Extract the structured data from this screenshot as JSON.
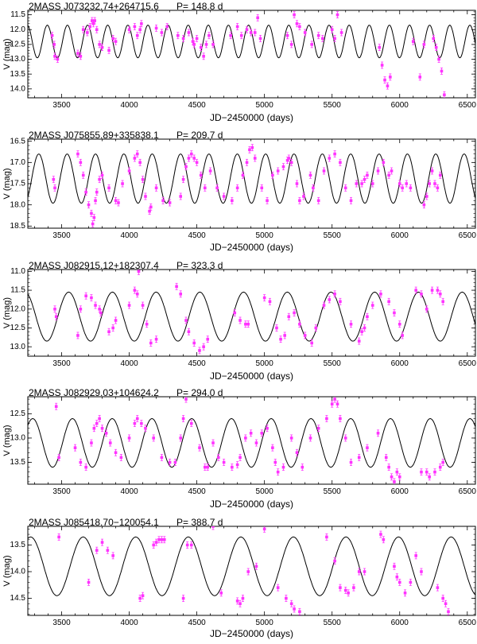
{
  "colors": {
    "data_points": "#ff33ff",
    "model_curve": "#000000",
    "axes": "#000000"
  },
  "chart_data": [
    {
      "type": "scatter",
      "title": "2MASS J073232.74+264715.6",
      "period_label": "P= 148.8 d",
      "period_days": 148.8,
      "xlabel": "JD−2450000 (days)",
      "ylabel": "V (mag)",
      "xlim": [
        3250,
        6560
      ],
      "ylim": [
        14.3,
        11.35
      ],
      "y_inverted": true,
      "xticks": [
        3500,
        4000,
        4500,
        5000,
        5500,
        6000,
        6500
      ],
      "yticks": [
        11.5,
        12.0,
        12.5,
        13.0,
        13.5,
        14.0
      ],
      "ytick_labels": [
        "11.5",
        "12.0",
        "12.5",
        "13.0",
        "13.5",
        "14.0"
      ],
      "model": {
        "mean": 12.4,
        "amplitude": 0.55,
        "period": 148.8,
        "phase_jd": 3320
      },
      "series": [
        {
          "x": [
            3430,
            3445,
            3450,
            3470,
            3620,
            3640,
            3660,
            3690,
            3710,
            3725,
            3735,
            3745,
            3760,
            3780,
            3800,
            3850,
            3880,
            3900,
            4000,
            4040,
            4060,
            4080,
            4090,
            4200,
            4240,
            4280,
            4360,
            4400,
            4440,
            4470,
            4480,
            4500,
            4530,
            4550,
            4570,
            4590,
            4620,
            4750,
            4800,
            4830,
            4870,
            4900,
            4930,
            4950,
            4970,
            5170,
            5200,
            5220,
            5240,
            5260,
            5300,
            5350,
            5400,
            5430,
            5500,
            5520,
            5540,
            5570,
            5850,
            5870,
            5890,
            5910,
            5930,
            6100,
            6150,
            6180,
            6250,
            6270,
            6290,
            6310,
            6330
          ],
          "y": [
            12.2,
            12.5,
            12.9,
            13.0,
            12.8,
            12.9,
            12.0,
            12.1,
            11.9,
            11.7,
            11.8,
            11.7,
            12.0,
            12.5,
            12.6,
            12.7,
            12.3,
            12.4,
            12.0,
            11.9,
            12.2,
            12.0,
            11.8,
            11.95,
            12.1,
            11.9,
            12.2,
            12.3,
            12.1,
            12.4,
            12.5,
            12.3,
            12.6,
            12.9,
            12.5,
            12.2,
            12.5,
            12.2,
            11.9,
            12.2,
            12.0,
            12.1,
            12.1,
            11.6,
            12.3,
            12.2,
            12.5,
            11.5,
            11.8,
            11.9,
            12.1,
            12.5,
            12.2,
            12.3,
            12.0,
            12.3,
            11.5,
            12.1,
            12.6,
            13.2,
            13.7,
            13.9,
            13.6,
            12.4,
            13.6,
            12.5,
            12.3,
            12.6,
            13.0,
            13.4,
            14.2
          ]
        }
      ]
    },
    {
      "type": "scatter",
      "title": "2MASS J075855.89+335838.1",
      "period_label": "P= 209.7 d",
      "period_days": 209.7,
      "xlabel": "JD−2450000 (days)",
      "ylabel": "V (mag)",
      "xlim": [
        3250,
        6560
      ],
      "ylim": [
        18.55,
        16.45
      ],
      "y_inverted": true,
      "xticks": [
        3500,
        4000,
        4500,
        5000,
        5500,
        6000,
        6500
      ],
      "yticks": [
        16.5,
        17.0,
        17.5,
        18.0,
        18.5
      ],
      "ytick_labels": [
        "16.5",
        "17.0",
        "17.5",
        "18.0",
        "18.5"
      ],
      "model": {
        "mean": 17.38,
        "amplitude": 0.58,
        "period": 209.7,
        "phase_jd": 3436
      },
      "series": [
        {
          "x": [
            3440,
            3450,
            3620,
            3640,
            3660,
            3680,
            3700,
            3720,
            3730,
            3740,
            3750,
            3760,
            3780,
            3800,
            3850,
            3900,
            3920,
            3950,
            4000,
            4040,
            4060,
            4080,
            4100,
            4120,
            4150,
            4160,
            4200,
            4250,
            4300,
            4380,
            4400,
            4420,
            4440,
            4460,
            4480,
            4500,
            4530,
            4560,
            4600,
            4650,
            4700,
            4760,
            4800,
            4840,
            4870,
            4890,
            4910,
            4930,
            4980,
            5020,
            5060,
            5100,
            5140,
            5170,
            5180,
            5200,
            5240,
            5260,
            5290,
            5340,
            5360,
            5400,
            5440,
            5480,
            5520,
            5560,
            5600,
            5640,
            5680,
            5720,
            5740,
            5760,
            5800,
            5840,
            5880,
            5920,
            5940,
            6000,
            6020,
            6050,
            6080,
            6180,
            6200,
            6220,
            6240,
            6260,
            6280,
            6300
          ],
          "y": [
            17.4,
            17.6,
            16.8,
            17.0,
            17.3,
            17.7,
            18.0,
            18.2,
            18.45,
            18.3,
            17.9,
            17.7,
            17.4,
            17.3,
            17.6,
            17.9,
            17.95,
            17.5,
            17.2,
            16.9,
            16.8,
            17.0,
            17.4,
            17.8,
            18.15,
            18.05,
            17.6,
            17.9,
            17.95,
            17.8,
            17.4,
            17.1,
            16.9,
            16.8,
            16.9,
            17.0,
            17.3,
            17.6,
            17.2,
            17.6,
            17.8,
            17.9,
            17.6,
            17.3,
            17.0,
            16.7,
            16.65,
            16.9,
            17.6,
            17.9,
            17.3,
            17.2,
            17.1,
            16.95,
            16.9,
            17.0,
            17.5,
            17.9,
            17.8,
            17.3,
            17.6,
            17.9,
            17.2,
            16.9,
            16.8,
            17.0,
            17.6,
            17.9,
            17.5,
            17.5,
            17.4,
            17.3,
            17.5,
            17.2,
            17.0,
            17.3,
            17.2,
            17.5,
            17.6,
            17.5,
            17.6,
            18.0,
            17.8,
            17.5,
            17.2,
            17.5,
            17.6,
            17.3
          ]
        }
      ]
    },
    {
      "type": "scatter",
      "title": "2MASS J082915.12+182307.4",
      "period_label": "P= 323.3 d",
      "period_days": 323.3,
      "xlabel": "JD−2450000 (days)",
      "ylabel": "V (mag)",
      "xlim": [
        3250,
        6560
      ],
      "ylim": [
        13.25,
        10.95
      ],
      "y_inverted": true,
      "xticks": [
        3500,
        4000,
        4500,
        5000,
        5500,
        6000,
        6500
      ],
      "yticks": [
        11.0,
        11.5,
        12.0,
        12.5,
        13.0
      ],
      "ytick_labels": [
        "11.0",
        "11.5",
        "12.0",
        "12.5",
        "13.0"
      ],
      "model": {
        "mean": 12.2,
        "amplitude": 0.65,
        "period": 323.3,
        "phase_jd": 3714
      },
      "series": [
        {
          "x": [
            3450,
            3460,
            3620,
            3640,
            3680,
            3720,
            3750,
            3780,
            3790,
            3850,
            3880,
            3900,
            4000,
            4040,
            4060,
            4070,
            4100,
            4130,
            4160,
            4200,
            4350,
            4380,
            4420,
            4440,
            4480,
            4520,
            4550,
            4580,
            4780,
            4820,
            4860,
            4880,
            5000,
            5040,
            5090,
            5120,
            5150,
            5180,
            5220,
            5260,
            5300,
            5350,
            5380,
            5440,
            5480,
            5520,
            5560,
            5640,
            5700,
            5720,
            5740,
            5760,
            5800,
            5860,
            5920,
            5960,
            6000,
            6020,
            6120,
            6160,
            6200,
            6240,
            6280,
            6300,
            6320
          ],
          "y": [
            12.0,
            12.2,
            12.7,
            12.0,
            11.65,
            11.7,
            11.9,
            12.0,
            12.1,
            12.6,
            12.5,
            12.3,
            11.9,
            11.5,
            11.6,
            11.0,
            11.9,
            12.4,
            12.9,
            12.8,
            11.4,
            11.6,
            12.3,
            12.6,
            12.9,
            13.1,
            13.0,
            12.8,
            12.1,
            12.3,
            12.4,
            12.4,
            11.7,
            11.8,
            12.5,
            12.8,
            12.7,
            12.2,
            12.1,
            12.4,
            12.7,
            12.9,
            12.5,
            11.9,
            11.75,
            11.6,
            11.8,
            12.4,
            12.85,
            12.6,
            12.5,
            12.2,
            11.9,
            11.6,
            11.8,
            12.1,
            12.4,
            12.7,
            11.5,
            11.6,
            12.0,
            11.5,
            11.5,
            11.6,
            11.8
          ]
        }
      ]
    },
    {
      "type": "scatter",
      "title": "2MASS J082929.03+104624.2",
      "period_label": "P= 294.0 d",
      "period_days": 294.0,
      "xlabel": "JD−2450000 (days)",
      "ylabel": "V (mag)",
      "xlim": [
        3250,
        6560
      ],
      "ylim": [
        13.95,
        12.15
      ],
      "y_inverted": true,
      "xticks": [
        3500,
        4000,
        4500,
        5000,
        5500,
        6000,
        6500
      ],
      "yticks": [
        12.5,
        13.0,
        13.5
      ],
      "ytick_labels": [
        "12.5",
        "13.0",
        "13.5"
      ],
      "model": {
        "mean": 13.1,
        "amplitude": 0.5,
        "period": 294.0,
        "phase_jd": 3433
      },
      "series": [
        {
          "x": [
            3460,
            3480,
            3600,
            3640,
            3680,
            3720,
            3740,
            3760,
            3780,
            3800,
            3830,
            3860,
            3900,
            3940,
            4000,
            4040,
            4060,
            4090,
            4120,
            4180,
            4240,
            4300,
            4340,
            4380,
            4400,
            4420,
            4460,
            4520,
            4560,
            4580,
            4620,
            4660,
            4700,
            4760,
            4800,
            4820,
            4860,
            4900,
            4940,
            4980,
            5020,
            5060,
            5080,
            5100,
            5140,
            5200,
            5240,
            5280,
            5340,
            5400,
            5460,
            5500,
            5520,
            5540,
            5560,
            5600,
            5640,
            5700,
            5760,
            5840,
            5900,
            5920,
            5940,
            5960,
            5980,
            6000,
            6160,
            6200,
            6220,
            6260,
            6300,
            6320
          ],
          "y": [
            12.35,
            13.4,
            13.2,
            13.5,
            13.6,
            13.1,
            12.8,
            12.7,
            12.6,
            12.8,
            12.9,
            13.1,
            13.3,
            13.4,
            13.0,
            12.7,
            12.6,
            12.7,
            12.8,
            13.0,
            13.4,
            13.5,
            13.5,
            13.0,
            12.6,
            12.2,
            12.7,
            13.2,
            13.6,
            13.6,
            13.1,
            13.4,
            13.5,
            13.6,
            13.55,
            13.4,
            13.0,
            12.9,
            13.1,
            12.9,
            12.8,
            13.2,
            13.5,
            13.7,
            13.6,
            13.0,
            13.3,
            13.6,
            13.0,
            12.8,
            12.6,
            12.3,
            12.2,
            12.3,
            12.6,
            13.0,
            13.5,
            13.4,
            13.2,
            12.9,
            13.4,
            13.6,
            13.8,
            13.9,
            13.7,
            13.8,
            13.7,
            13.7,
            13.8,
            13.7,
            13.6,
            13.5
          ]
        }
      ]
    },
    {
      "type": "scatter",
      "title": "2MASS J085418.70−120054.1",
      "period_label": "P= 388.7 d",
      "period_days": 388.7,
      "xlabel": "JD−2450000 (days)",
      "ylabel": "V (mag)",
      "xlim": [
        3250,
        6560
      ],
      "ylim": [
        14.82,
        13.15
      ],
      "y_inverted": true,
      "xticks": [
        3500,
        4000,
        4500,
        5000,
        5500,
        6000,
        6500
      ],
      "yticks": [
        13.5,
        14.0,
        14.5
      ],
      "ytick_labels": [
        "13.5",
        "14.0",
        "14.5"
      ],
      "model": {
        "mean": 13.9,
        "amplitude": 0.55,
        "period": 388.7,
        "phase_jd": 3465
      },
      "series": [
        {
          "x": [
            3480,
            3700,
            3760,
            3800,
            3840,
            3880,
            4080,
            4100,
            4180,
            4200,
            4220,
            4240,
            4260,
            4400,
            4430,
            4460,
            4620,
            4680,
            4800,
            4820,
            4840,
            4880,
            4940,
            5000,
            5100,
            5160,
            5200,
            5220,
            5260,
            5460,
            5520,
            5560,
            5600,
            5620,
            5660,
            5700,
            5740,
            5860,
            5880,
            5960,
            5980,
            6000,
            6040,
            6080,
            6120,
            6160,
            6280,
            6320,
            6340,
            6360
          ],
          "y": [
            13.35,
            14.2,
            13.6,
            13.45,
            13.6,
            13.7,
            14.5,
            14.45,
            13.5,
            13.45,
            13.4,
            13.4,
            13.4,
            14.5,
            13.5,
            13.5,
            13.15,
            14.4,
            14.55,
            14.6,
            14.5,
            14.0,
            13.9,
            13.2,
            14.3,
            14.5,
            14.6,
            14.7,
            14.75,
            13.35,
            13.8,
            14.3,
            14.35,
            14.4,
            14.3,
            14.0,
            14.0,
            13.3,
            13.4,
            13.9,
            14.1,
            14.2,
            14.4,
            14.2,
            13.7,
            14.0,
            14.3,
            14.5,
            14.6,
            14.75
          ]
        }
      ]
    }
  ]
}
